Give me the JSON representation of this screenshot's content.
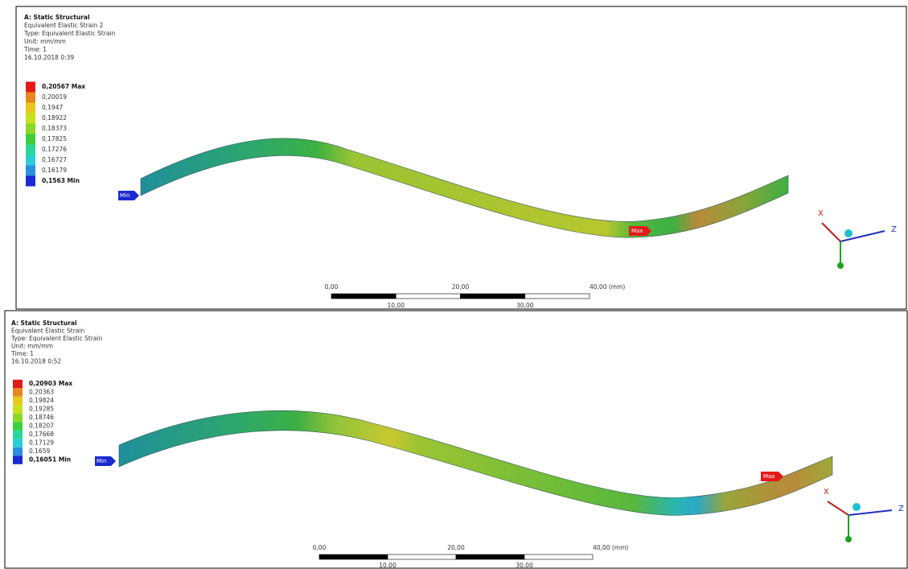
{
  "panels": [
    {
      "header": {
        "title": "A: Static Structural",
        "lines": [
          "Equivalent Elastic Strain 2",
          "Type: Equivalent Elastic Strain",
          "Unit: mm/mm",
          "Time: 1",
          "16.10.2018 0:39"
        ]
      },
      "legend": [
        "0,20567 Max",
        "0,20019",
        "0,1947",
        "0,18922",
        "0,18373",
        "0,17825",
        "0,17276",
        "0,16727",
        "0,16179",
        "0,1563 Min"
      ],
      "markers": {
        "min": "Min",
        "max": "Max"
      },
      "scale_bar": {
        "top": [
          "0,00",
          "20,00",
          "40,00 (mm)"
        ],
        "bottom": [
          "10,00",
          "30,00"
        ]
      },
      "triad": {
        "x": "X",
        "z": "Z"
      }
    },
    {
      "header": {
        "title": "A: Static Structural",
        "lines": [
          "Equivalent Elastic Strain",
          "Type: Equivalent Elastic Strain",
          "Unit: mm/mm",
          "Time: 1",
          "16.10.2018 0:52"
        ]
      },
      "legend": [
        "0,20903 Max",
        "0,20363",
        "0,19824",
        "0,19285",
        "0,18746",
        "0,18207",
        "0,17668",
        "0,17129",
        "0,1659",
        "0,16051 Min"
      ],
      "markers": {
        "min": "Min",
        "max": "Max"
      },
      "scale_bar": {
        "top": [
          "0,00",
          "20,00",
          "40,00 (mm)"
        ],
        "bottom": [
          "10,00",
          "30,00"
        ]
      },
      "triad": {
        "x": "X",
        "z": "Z"
      }
    }
  ]
}
